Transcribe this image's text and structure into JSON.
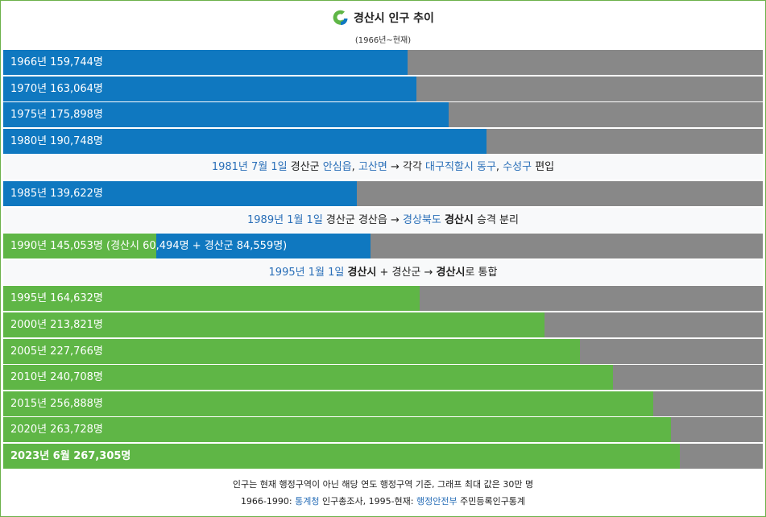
{
  "header": {
    "title": "경산시 인구 추이",
    "subtitle": "(1966년~현재)",
    "logo_icon": "gyeongsan-city-logo"
  },
  "colors": {
    "blue_bar": "#0f78c0",
    "green_bar": "#5fb646",
    "remainder": "#888888",
    "link": "#2a6fb8",
    "border": "#6cb14a"
  },
  "chart_data": {
    "type": "bar",
    "orientation": "horizontal",
    "max_value": 300000,
    "rows": [
      {
        "kind": "bar",
        "label": "1966년 159,744명",
        "value": 159744,
        "color": "blue"
      },
      {
        "kind": "bar",
        "label": "1970년 163,064명",
        "value": 163064,
        "color": "blue"
      },
      {
        "kind": "bar",
        "label": "1975년 175,898명",
        "value": 175898,
        "color": "blue"
      },
      {
        "kind": "bar",
        "label": "1980년 190,748명",
        "value": 190748,
        "color": "blue"
      },
      {
        "kind": "note",
        "parts": [
          {
            "text": "1981년 7월 1일",
            "style": "link"
          },
          {
            "text": " 경산군 ",
            "style": "plain"
          },
          {
            "text": "안심읍",
            "style": "link"
          },
          {
            "text": ", ",
            "style": "plain"
          },
          {
            "text": "고산면",
            "style": "link"
          },
          {
            "text": " → 각각 ",
            "style": "plain"
          },
          {
            "text": "대구직할시",
            "style": "link"
          },
          {
            "text": " ",
            "style": "plain"
          },
          {
            "text": "동구",
            "style": "link"
          },
          {
            "text": ", ",
            "style": "plain"
          },
          {
            "text": "수성구",
            "style": "link"
          },
          {
            "text": " 편입",
            "style": "plain"
          }
        ]
      },
      {
        "kind": "bar",
        "label": "1985년 139,622명",
        "value": 139622,
        "color": "blue"
      },
      {
        "kind": "note",
        "parts": [
          {
            "text": "1989년 1월 1일",
            "style": "link"
          },
          {
            "text": " 경산군 경산읍 → ",
            "style": "plain"
          },
          {
            "text": "경상북도",
            "style": "link"
          },
          {
            "text": " ",
            "style": "plain"
          },
          {
            "text": "경산시",
            "style": "bold"
          },
          {
            "text": " 승격 분리",
            "style": "plain"
          }
        ]
      },
      {
        "kind": "stacked",
        "label": "1990년 145,053명 (경산시 60,494명 + 경산군 84,559명)",
        "value": 145053,
        "segments": [
          {
            "name": "경산시",
            "value": 60494,
            "color": "green"
          },
          {
            "name": "경산군",
            "value": 84559,
            "color": "blue"
          }
        ]
      },
      {
        "kind": "note",
        "parts": [
          {
            "text": "1995년 1월 1일",
            "style": "link"
          },
          {
            "text": " ",
            "style": "plain"
          },
          {
            "text": "경산시",
            "style": "bold"
          },
          {
            "text": " + 경산군 → ",
            "style": "plain"
          },
          {
            "text": "경산시",
            "style": "bold"
          },
          {
            "text": "로 통합",
            "style": "plain"
          }
        ]
      },
      {
        "kind": "bar",
        "label": "1995년 164,632명",
        "value": 164632,
        "color": "green"
      },
      {
        "kind": "bar",
        "label": "2000년 213,821명",
        "value": 213821,
        "color": "green"
      },
      {
        "kind": "bar",
        "label": "2005년 227,766명",
        "value": 227766,
        "color": "green"
      },
      {
        "kind": "bar",
        "label": "2010년 240,708명",
        "value": 240708,
        "color": "green"
      },
      {
        "kind": "bar",
        "label": "2015년 256,888명",
        "value": 256888,
        "color": "green"
      },
      {
        "kind": "bar",
        "label": "2020년 263,728명",
        "value": 263728,
        "color": "green"
      },
      {
        "kind": "bar",
        "label": "2023년 6월 267,305명",
        "value": 267305,
        "color": "green",
        "bold": true
      }
    ]
  },
  "footer": {
    "note": "인구는 현재 행정구역이 아닌 해당 연도 행정구역 기준, 그래프 최대 값은 30만 명",
    "source_parts": [
      {
        "text": "1966-1990: ",
        "style": "plain"
      },
      {
        "text": "통계청",
        "style": "link"
      },
      {
        "text": " 인구총조사, 1995-현재: ",
        "style": "plain"
      },
      {
        "text": "행정안전부",
        "style": "link"
      },
      {
        "text": " 주민등록인구통계",
        "style": "plain"
      }
    ]
  }
}
